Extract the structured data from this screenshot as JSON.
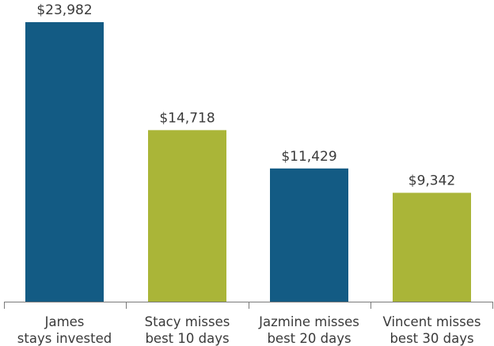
{
  "chart_data": {
    "type": "bar",
    "categories": [
      [
        "James",
        "stays invested"
      ],
      [
        "Stacy misses",
        "best 10 days"
      ],
      [
        "Jazmine misses",
        "best 20 days"
      ],
      [
        "Vincent misses",
        "best 30 days"
      ]
    ],
    "values": [
      23982,
      14718,
      11429,
      9342
    ],
    "value_labels": [
      "$23,982",
      "$14,718",
      "$11,429",
      "$9,342"
    ],
    "bar_colors": [
      "#135b84",
      "#aab538",
      "#135b84",
      "#aab538"
    ],
    "ylim": [
      0,
      24000
    ],
    "title": "",
    "xlabel": "",
    "ylabel": "",
    "grid": false
  }
}
